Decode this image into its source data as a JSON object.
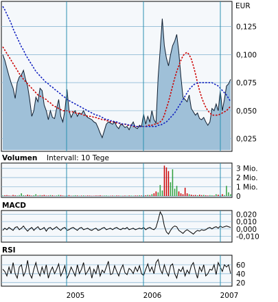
{
  "colors": {
    "panel_bg": "#f5f8fb",
    "area_fill": "#9fc0d8",
    "price_line": "#0e1c2e",
    "ma_red": "#cc0000",
    "ma_blue": "#1020c0",
    "grid_h": "#7fb0d0",
    "grid_v": "#2a8fb0",
    "axis": "#000000"
  },
  "price_panel": {
    "currency": "EUR"
  },
  "volume_panel": {
    "title": "Volumen",
    "subtitle": "Intervall: 10 Tege"
  },
  "macd_panel": {
    "title": "MACD"
  },
  "rsi_panel": {
    "title": "RSI"
  },
  "x_ticks": [
    "2005",
    "2006",
    "2007"
  ],
  "chart_data": [
    {
      "type": "area",
      "ylabel": "EUR",
      "ylim": [
        0.015,
        0.145
      ],
      "y_ticks": [
        "0,125",
        "0,100",
        "0,075",
        "0,050",
        "0,025"
      ],
      "y_tick_values": [
        0.125,
        0.1,
        0.075,
        0.05,
        0.025
      ],
      "grid": true,
      "x_ticks": [
        "2005",
        "2006",
        "2007"
      ],
      "series": [
        {
          "values": [
            0.1,
            0.095,
            0.088,
            0.081,
            0.075,
            0.07,
            0.061,
            0.075,
            0.08,
            0.082,
            0.086,
            0.078,
            0.072,
            0.06,
            0.045,
            0.05,
            0.062,
            0.058,
            0.07,
            0.068,
            0.055,
            0.05,
            0.042,
            0.05,
            0.044,
            0.043,
            0.052,
            0.06,
            0.045,
            0.04,
            0.05,
            0.069,
            0.05,
            0.044,
            0.048,
            0.05,
            0.045,
            0.048,
            0.047,
            0.05,
            0.046,
            0.044,
            0.043,
            0.042,
            0.04,
            0.039,
            0.035,
            0.03,
            0.026,
            0.032,
            0.038,
            0.04,
            0.039,
            0.038,
            0.04,
            0.036,
            0.034,
            0.038,
            0.037,
            0.035,
            0.036,
            0.033,
            0.037,
            0.04,
            0.035,
            0.034,
            0.037,
            0.036,
            0.047,
            0.038,
            0.045,
            0.04,
            0.05,
            0.042,
            0.039,
            0.08,
            0.105,
            0.132,
            0.108,
            0.097,
            0.09,
            0.1,
            0.108,
            0.112,
            0.118,
            0.102,
            0.08,
            0.062,
            0.06,
            0.058,
            0.064,
            0.052,
            0.049,
            0.046,
            0.048,
            0.043,
            0.042,
            0.044,
            0.04,
            0.037,
            0.04,
            0.052,
            0.05,
            0.056,
            0.05,
            0.068,
            0.05,
            0.06,
            0.072,
            0.074,
            0.078
          ]
        },
        {
          "values": [
            0.107,
            0.104,
            0.101,
            0.098,
            0.095,
            0.092,
            0.089,
            0.086,
            0.083,
            0.081,
            0.078,
            0.076,
            0.074,
            0.072,
            0.07,
            0.068,
            0.066,
            0.064,
            0.063,
            0.062,
            0.061,
            0.06,
            0.058,
            0.057,
            0.055,
            0.054,
            0.053,
            0.052,
            0.051,
            0.05,
            0.05,
            0.05,
            0.049,
            0.049,
            0.049,
            0.048,
            0.048,
            0.047,
            0.047,
            0.046,
            0.046,
            0.045,
            0.045,
            0.045,
            0.044,
            0.044,
            0.043,
            0.043,
            0.042,
            0.042,
            0.041,
            0.041,
            0.04,
            0.04,
            0.04,
            0.039,
            0.039,
            0.038,
            0.038,
            0.038,
            0.037,
            0.037,
            0.037,
            0.036,
            0.036,
            0.036,
            0.036,
            0.036,
            0.036,
            0.036,
            0.037,
            0.037,
            0.037,
            0.038,
            0.038,
            0.039,
            0.04,
            0.042,
            0.046,
            0.052,
            0.058,
            0.065,
            0.072,
            0.079,
            0.085,
            0.09,
            0.095,
            0.099,
            0.101,
            0.102,
            0.1,
            0.096,
            0.09,
            0.083,
            0.075,
            0.068,
            0.062,
            0.057,
            0.053,
            0.05,
            0.048,
            0.046,
            0.046,
            0.046,
            0.046,
            0.047,
            0.048,
            0.049,
            0.05,
            0.052,
            0.054
          ]
        },
        {
          "values": [
            0.143,
            0.14,
            0.136,
            0.132,
            0.128,
            0.123,
            0.119,
            0.115,
            0.111,
            0.107,
            0.104,
            0.1,
            0.097,
            0.094,
            0.091,
            0.088,
            0.085,
            0.083,
            0.081,
            0.079,
            0.077,
            0.075,
            0.074,
            0.072,
            0.071,
            0.069,
            0.068,
            0.066,
            0.065,
            0.063,
            0.062,
            0.06,
            0.059,
            0.058,
            0.057,
            0.056,
            0.055,
            0.054,
            0.053,
            0.052,
            0.051,
            0.05,
            0.049,
            0.048,
            0.047,
            0.046,
            0.046,
            0.045,
            0.044,
            0.043,
            0.042,
            0.042,
            0.041,
            0.041,
            0.04,
            0.04,
            0.039,
            0.039,
            0.038,
            0.038,
            0.038,
            0.037,
            0.037,
            0.037,
            0.036,
            0.036,
            0.036,
            0.036,
            0.036,
            0.036,
            0.036,
            0.036,
            0.036,
            0.036,
            0.036,
            0.037,
            0.037,
            0.038,
            0.039,
            0.04,
            0.042,
            0.044,
            0.046,
            0.048,
            0.051,
            0.054,
            0.057,
            0.06,
            0.063,
            0.066,
            0.069,
            0.071,
            0.073,
            0.074,
            0.075,
            0.075,
            0.075,
            0.075,
            0.075,
            0.075,
            0.075,
            0.075,
            0.074,
            0.073,
            0.072,
            0.07,
            0.068,
            0.066,
            0.064,
            0.061,
            0.058
          ]
        }
      ]
    },
    {
      "type": "bar",
      "title": "Volumen",
      "ylim": [
        0,
        3.5
      ],
      "y_ticks": [
        "3 Mio.",
        "2 Mio.",
        "1 Mio.",
        "0"
      ],
      "y_tick_values": [
        3,
        2,
        1,
        0
      ],
      "series": [
        {
          "values": [
            0.05,
            0.08,
            0.1,
            0.06,
            0.04,
            0.12,
            0.08,
            0.05,
            0.1,
            0.3,
            0.08,
            0.06,
            0.15,
            0.1,
            0.05,
            0.08,
            0.2,
            0.06,
            0.1,
            0.08,
            0.12,
            0.05,
            0.06,
            0.1,
            0.08,
            0.04,
            0.06,
            0.12,
            0.1,
            0.05,
            0.03,
            0.06,
            0.1,
            0.04,
            0.05,
            0.08,
            0.06,
            0.04,
            0.05,
            0.07,
            0.04,
            0.06,
            0.05,
            0.03,
            0.04,
            0.06,
            0.05,
            0.08,
            0.04,
            0.05,
            0.06,
            0.03,
            0.04,
            0.05,
            0.04,
            0.06,
            0.05,
            0.04,
            0.03,
            0.05,
            0.04,
            0.06,
            0.05,
            0.04,
            0.06,
            0.05,
            0.08,
            0.06,
            0.1,
            0.08,
            0.12,
            0.1,
            0.2,
            0.3,
            0.5,
            0.4,
            1.2,
            0.6,
            3.3,
            3.1,
            2.7,
            1.5,
            2.9,
            0.8,
            1.1,
            0.5,
            0.3,
            0.2,
            0.9,
            0.3,
            0.2,
            0.15,
            0.1,
            0.12,
            0.08,
            0.15,
            0.1,
            0.12,
            0.08,
            0.06,
            0.1,
            0.08,
            0.06,
            0.2,
            0.15,
            0.1,
            0.2,
            0.1,
            1.1,
            0.4,
            0.2
          ]
        }
      ]
    },
    {
      "type": "line",
      "title": "MACD",
      "ylim": [
        -0.016,
        0.024
      ],
      "y_ticks": [
        "0,020",
        "0,010",
        "0,000",
        "-0,010"
      ],
      "y_tick_values": [
        0.02,
        0.01,
        0,
        -0.01
      ],
      "series": [
        {
          "values": [
            -0.002,
            0.001,
            -0.001,
            0.002,
            0,
            -0.002,
            0.002,
            0.003,
            -0.001,
            0.001,
            0.004,
            0,
            -0.003,
            0,
            0.002,
            -0.002,
            0.001,
            0.003,
            -0.001,
            0,
            0.002,
            -0.003,
            0.001,
            0.002,
            -0.001,
            0.001,
            0.003,
            0,
            -0.002,
            0.001,
            0.002,
            -0.002,
            -0.001,
            0.001,
            0.002,
            0,
            -0.002,
            0.001,
            0.002,
            -0.001,
            0,
            0.001,
            -0.001,
            -0.002,
            0,
            0.001,
            -0.002,
            -0.001,
            0.001,
            0.002,
            -0.001,
            0,
            0.001,
            -0.001,
            0.001,
            0.002,
            0,
            -0.001,
            0.001,
            0,
            0.002,
            -0.001,
            0,
            0.001,
            -0.001,
            0,
            0.001,
            0,
            0.002,
            -0.001,
            0.001,
            0.002,
            0,
            -0.001,
            0.002,
            0.012,
            0.023,
            0.018,
            0.004,
            -0.004,
            -0.007,
            -0.002,
            0.002,
            0.004,
            0.003,
            -0.002,
            -0.004,
            -0.006,
            -0.003,
            -0.001,
            -0.003,
            -0.005,
            -0.007,
            -0.004,
            -0.002,
            -0.003,
            -0.001,
            -0.002,
            -0.001,
            0.001,
            0.002,
            0,
            0.002,
            0.003,
            0.001,
            0.004,
            0.002,
            0.003,
            0.004,
            0.003,
            0.002
          ]
        }
      ]
    },
    {
      "type": "line",
      "title": "RSI",
      "ylim": [
        15,
        80
      ],
      "y_ticks": [
        "60",
        "40",
        "20"
      ],
      "y_tick_values": [
        60,
        40,
        20
      ],
      "series": [
        {
          "values": [
            50,
            45,
            35,
            55,
            40,
            65,
            40,
            30,
            55,
            60,
            35,
            45,
            70,
            40,
            30,
            50,
            65,
            45,
            35,
            55,
            40,
            60,
            30,
            45,
            55,
            40,
            50,
            62,
            35,
            45,
            58,
            30,
            40,
            55,
            45,
            35,
            60,
            40,
            50,
            65,
            38,
            45,
            55,
            30,
            50,
            40,
            60,
            35,
            48,
            42,
            55,
            68,
            38,
            40,
            58,
            45,
            35,
            50,
            60,
            42,
            38,
            52,
            48,
            40,
            55,
            45,
            58,
            40,
            36,
            50,
            62,
            45,
            55,
            40,
            65,
            72,
            50,
            40,
            60,
            45,
            35,
            58,
            62,
            40,
            30,
            50,
            45,
            55,
            35,
            48,
            40,
            58,
            65,
            45,
            30,
            55,
            45,
            60,
            35,
            40,
            50,
            48,
            60,
            38,
            65,
            55,
            45,
            60,
            55,
            60,
            40
          ]
        }
      ]
    }
  ]
}
